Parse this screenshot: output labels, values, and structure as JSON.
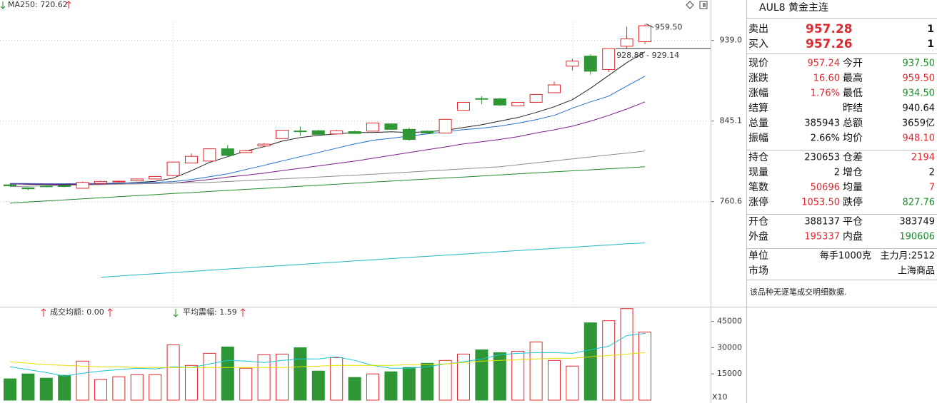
{
  "chart_data": [
    {
      "type": "candlestick",
      "log_scale": true,
      "grid": true,
      "categories": [
        null,
        null,
        null,
        null,
        null,
        null,
        null,
        null,
        null,
        null,
        null,
        null,
        null,
        null,
        null,
        null,
        null,
        null,
        null,
        null,
        null,
        null,
        null,
        null,
        null,
        null,
        null,
        null,
        null,
        null,
        null,
        null,
        null,
        null,
        null,
        null
      ],
      "open": [
        777.5,
        774.5,
        776.3,
        776.8,
        774.0,
        779.0,
        780.5,
        781.5,
        783.5,
        787.0,
        800.0,
        802.0,
        815.0,
        811.0,
        818.0,
        826.0,
        834.2,
        834.5,
        831.0,
        833.5,
        834.0,
        842.0,
        836.0,
        834.0,
        832.0,
        857.0,
        870.3,
        870.0,
        862.0,
        866.0,
        877.0,
        908.0,
        920.0,
        904.0,
        932.0,
        937.5
      ],
      "high": [
        778.0,
        775.0,
        777.0,
        777.5,
        781.0,
        781.8,
        781.8,
        784.0,
        786.5,
        801.5,
        810.0,
        815.5,
        819.0,
        814.0,
        821.0,
        835.5,
        839.0,
        835.5,
        835.5,
        834.5,
        843.5,
        842.5,
        838.0,
        835.0,
        847.5,
        866.5,
        873.0,
        871.0,
        866.5,
        875.5,
        890.0,
        917.0,
        922.0,
        928.88,
        956.0,
        959.5
      ],
      "low": [
        775.5,
        772.0,
        775.0,
        775.0,
        773.5,
        778.5,
        780.0,
        781.0,
        783.0,
        786.5,
        799.5,
        801.5,
        806.5,
        810.5,
        817.5,
        825.5,
        829.0,
        830.0,
        830.5,
        831.0,
        833.5,
        835.5,
        823.5,
        831.5,
        831.5,
        856.5,
        864.0,
        862.0,
        861.5,
        865.5,
        876.5,
        903.0,
        898.0,
        901.0,
        929.14,
        934.5
      ],
      "close": [
        776.5,
        773.5,
        776.0,
        775.8,
        780.0,
        781.0,
        781.2,
        783.5,
        786.0,
        801.0,
        807.0,
        815.0,
        808.0,
        813.0,
        820.0,
        835.0,
        834.0,
        830.5,
        834.5,
        831.5,
        843.0,
        836.0,
        825.0,
        832.0,
        847.0,
        866.0,
        870.0,
        863.0,
        866.0,
        875.0,
        886.0,
        914.0,
        902.0,
        928.88,
        941.0,
        957.24
      ],
      "up_color": "#e0282e",
      "down_color": "#2e9634",
      "series": [
        {
          "color": "#222222",
          "values": [
            778.6,
            778.0,
            777.8,
            777.6,
            778.0,
            778.4,
            779.0,
            780.0,
            781.0,
            784.4,
            792.0,
            800.6,
            806.6,
            812.6,
            817.2,
            823.2,
            827.0,
            829.4,
            831.0,
            832.5,
            832.5,
            833.3,
            832.5,
            833.3,
            834.9,
            838.0,
            841.0,
            845.1,
            849.0,
            854.6,
            861.0,
            869.0,
            882.1,
            897.0,
            912.2,
            925.1
          ]
        },
        {
          "color": "#1e6fd0",
          "values": [
            779.0,
            778.8,
            778.6,
            778.6,
            778.8,
            779.0,
            779.3,
            779.6,
            780.0,
            780.8,
            782.9,
            785.8,
            788.8,
            793.2,
            797.6,
            802.1,
            806.6,
            811.1,
            815.6,
            820.2,
            824.0,
            826.3,
            828.7,
            831.0,
            833.3,
            835.7,
            837.2,
            839.6,
            842.7,
            846.6,
            851.4,
            859.4,
            866.6,
            873.1,
            884.6,
            896.2
          ]
        },
        {
          "color": "#7a1e8a",
          "values": [
            778.4,
            778.3,
            778.2,
            778.2,
            778.2,
            778.3,
            778.4,
            778.6,
            778.8,
            779.2,
            781.0,
            783.0,
            785.5,
            787.3,
            789.5,
            792.0,
            794.5,
            797.0,
            799.5,
            802.0,
            805.0,
            808.0,
            811.0,
            814.0,
            817.0,
            820.2,
            822.5,
            825.0,
            828.0,
            832.0,
            835.5,
            839.5,
            845.0,
            851.4,
            858.5,
            866.6
          ]
        },
        {
          "color": "#8c8c8c",
          "values": [
            775.7,
            776.1,
            776.5,
            776.9,
            777.3,
            777.7,
            778.1,
            778.5,
            778.9,
            779.3,
            779.7,
            780.0,
            780.9,
            781.8,
            782.7,
            783.6,
            784.5,
            785.4,
            786.4,
            787.3,
            788.4,
            789.5,
            790.6,
            791.7,
            792.8,
            793.9,
            795.0,
            796.1,
            798.2,
            800.2,
            802.3,
            804.4,
            806.4,
            808.5,
            810.5,
            812.6
          ]
        },
        {
          "color": "#1f8a2a",
          "values": [
            759.2,
            760.3,
            761.3,
            762.4,
            763.4,
            764.5,
            765.5,
            766.6,
            767.6,
            768.7,
            769.7,
            770.8,
            771.8,
            772.9,
            773.9,
            775.0,
            776.1,
            777.1,
            778.2,
            779.2,
            780.3,
            781.3,
            782.4,
            783.4,
            784.5,
            785.5,
            786.6,
            787.6,
            788.7,
            789.8,
            790.8,
            791.9,
            792.9,
            794.0,
            795.0,
            796.1
          ]
        },
        {
          "name": "MA250: 720.62",
          "color": "#1fb5c2",
          "values": [
            null,
            null,
            null,
            null,
            null,
            689.0,
            690.1,
            691.2,
            692.2,
            693.3,
            694.3,
            695.4,
            696.5,
            697.5,
            698.6,
            699.6,
            700.7,
            701.8,
            702.8,
            703.9,
            704.9,
            706.0,
            707.1,
            708.1,
            709.2,
            710.2,
            711.3,
            712.4,
            713.4,
            714.5,
            715.5,
            716.6,
            717.7,
            718.7,
            719.8,
            720.62
          ]
        }
      ],
      "ylim": [
        663,
        990
      ],
      "yticks": [
        {
          "value": 939,
          "label": "939.0"
        },
        845.1,
        760.6
      ],
      "annotations": [
        "959.50",
        "928.88 - 929.14"
      ]
    },
    {
      "type": "bar",
      "grid": false,
      "categories": [
        null,
        null,
        null,
        null,
        null,
        null,
        null,
        null,
        null,
        null,
        null,
        null,
        null,
        null,
        null,
        null,
        null,
        null,
        null,
        null,
        null,
        null,
        null,
        null,
        null,
        null,
        null,
        null,
        null,
        null,
        null,
        null,
        null,
        null,
        null,
        null
      ],
      "values": [
        12160,
        15000,
        12570,
        14190,
        22300,
        11760,
        13380,
        14590,
        14590,
        31620,
        19860,
        26760,
        30400,
        18240,
        25950,
        26350,
        30000,
        16620,
        24320,
        12970,
        15000,
        16220,
        18650,
        21080,
        22700,
        26350,
        28780,
        27160,
        27970,
        33240,
        22700,
        19460,
        44190,
        45400,
        52300,
        38920
      ],
      "series": [
        {
          "color": "#19c6d6",
          "values": [
            19050,
            17430,
            15810,
            13780,
            15400,
            16620,
            17430,
            18240,
            17840,
            19050,
            18650,
            20680,
            22700,
            22300,
            21490,
            22700,
            23510,
            23510,
            24730,
            22700,
            19860,
            18240,
            18240,
            19050,
            20680,
            21890,
            23510,
            25950,
            26760,
            27160,
            27160,
            26760,
            28780,
            30810,
            36890,
            38110
          ]
        },
        {
          "color": "#e6de00",
          "values": [
            21890,
            21080,
            20270,
            19860,
            19460,
            19050,
            19050,
            18650,
            18650,
            18650,
            18650,
            18650,
            18650,
            18650,
            18650,
            18650,
            19050,
            19460,
            19860,
            19860,
            19860,
            19860,
            20270,
            20270,
            20680,
            21490,
            22300,
            22700,
            23110,
            23510,
            23920,
            23920,
            24730,
            25540,
            26350,
            27160
          ]
        }
      ],
      "ylim": [
        0,
        53000
      ],
      "yticks": [
        15000,
        30000,
        45000
      ],
      "annotations": [
        "成交均额: 0.00",
        "平均震幅: 1.59"
      ],
      "unit_label": "X10"
    }
  ],
  "quote_panel": {
    "title": "AUL8 黄金主连",
    "orders": [
      {
        "label": "卖出",
        "price": "957.28",
        "volume": "1"
      },
      {
        "label": "买入",
        "price": "957.26",
        "volume": "1"
      }
    ],
    "sections": [
      [
        [
          {
            "label": "现价",
            "value": "957.24",
            "color": "#e0282e"
          },
          {
            "label": "今开",
            "value": "937.50",
            "color": "#1a8f24"
          }
        ],
        [
          {
            "label": "涨跌",
            "value": "16.60",
            "color": "#e0282e"
          },
          {
            "label": "最高",
            "value": "959.50",
            "color": "#e0282e"
          }
        ],
        [
          {
            "label": "涨幅",
            "value": "1.76%",
            "color": "#e0282e"
          },
          {
            "label": "最低",
            "value": "934.50",
            "color": "#1a8f24"
          }
        ],
        [
          {
            "label": "结算"
          },
          {
            "label": "昨结",
            "value": "940.64",
            "color": "#111111"
          }
        ],
        [
          {
            "label": "总量",
            "value": "385943",
            "color": "#111111"
          },
          {
            "label": "总额",
            "value": "3659亿",
            "color": "#111111"
          }
        ],
        [
          {
            "label": "振幅",
            "value": "2.66%",
            "color": "#111111"
          },
          {
            "label": "均价",
            "value": "948.10",
            "color": "#e0282e"
          }
        ]
      ],
      [
        [
          {
            "label": "持仓",
            "value": "230653",
            "color": "#111111"
          },
          {
            "label": "仓差",
            "value": "2194",
            "color": "#e0282e"
          }
        ],
        [
          {
            "label": "现量",
            "value": "2",
            "color": "#111111"
          },
          {
            "label": "增仓",
            "value": "2",
            "color": "#111111"
          }
        ],
        [
          {
            "label": "笔数",
            "value": "50696",
            "color": "#e0282e"
          },
          {
            "label": "均量",
            "value": "7",
            "color": "#e0282e"
          }
        ],
        [
          {
            "label": "涨停",
            "value": "1053.50",
            "color": "#e0282e"
          },
          {
            "label": "跌停",
            "value": "827.76",
            "color": "#1a8f24"
          }
        ]
      ],
      [
        [
          {
            "label": "开仓",
            "value": "388137",
            "color": "#111111"
          },
          {
            "label": "平仓",
            "value": "383749",
            "color": "#111111"
          }
        ],
        [
          {
            "label": "外盘",
            "value": "195337",
            "color": "#e0282e"
          },
          {
            "label": "内盘",
            "value": "190606",
            "color": "#1a8f24"
          }
        ]
      ]
    ],
    "unit": {
      "label": "单位",
      "value": "每手1000克",
      "extra": "主力月:2512"
    },
    "market": {
      "label": "市场",
      "value": "上海商品"
    },
    "note": "该品种无逐笔成交明细数据."
  }
}
